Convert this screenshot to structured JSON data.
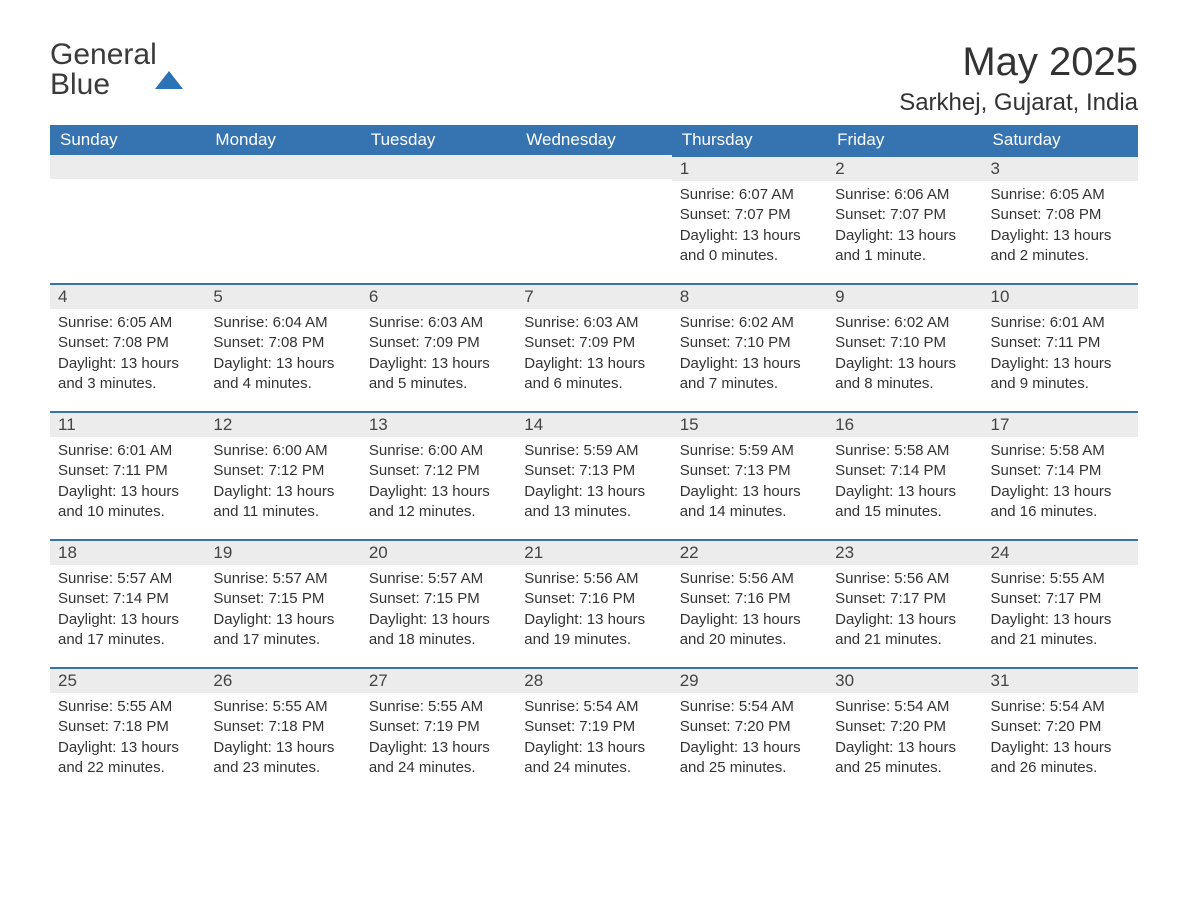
{
  "logo": {
    "line1": "General",
    "line2": "Blue"
  },
  "title": {
    "month": "May 2025",
    "location": "Sarkhej, Gujarat, India"
  },
  "colors": {
    "header_bg": "#3573b1",
    "header_text": "#ffffff",
    "daynum_bg": "#ececec",
    "border_top": "#3573b1",
    "body_text": "#333333"
  },
  "day_headers": [
    "Sunday",
    "Monday",
    "Tuesday",
    "Wednesday",
    "Thursday",
    "Friday",
    "Saturday"
  ],
  "weeks": [
    [
      {
        "empty": true
      },
      {
        "empty": true
      },
      {
        "empty": true
      },
      {
        "empty": true
      },
      {
        "num": "1",
        "sunrise": "Sunrise: 6:07 AM",
        "sunset": "Sunset: 7:07 PM",
        "daylight": "Daylight: 13 hours and 0 minutes."
      },
      {
        "num": "2",
        "sunrise": "Sunrise: 6:06 AM",
        "sunset": "Sunset: 7:07 PM",
        "daylight": "Daylight: 13 hours and 1 minute."
      },
      {
        "num": "3",
        "sunrise": "Sunrise: 6:05 AM",
        "sunset": "Sunset: 7:08 PM",
        "daylight": "Daylight: 13 hours and 2 minutes."
      }
    ],
    [
      {
        "num": "4",
        "sunrise": "Sunrise: 6:05 AM",
        "sunset": "Sunset: 7:08 PM",
        "daylight": "Daylight: 13 hours and 3 minutes."
      },
      {
        "num": "5",
        "sunrise": "Sunrise: 6:04 AM",
        "sunset": "Sunset: 7:08 PM",
        "daylight": "Daylight: 13 hours and 4 minutes."
      },
      {
        "num": "6",
        "sunrise": "Sunrise: 6:03 AM",
        "sunset": "Sunset: 7:09 PM",
        "daylight": "Daylight: 13 hours and 5 minutes."
      },
      {
        "num": "7",
        "sunrise": "Sunrise: 6:03 AM",
        "sunset": "Sunset: 7:09 PM",
        "daylight": "Daylight: 13 hours and 6 minutes."
      },
      {
        "num": "8",
        "sunrise": "Sunrise: 6:02 AM",
        "sunset": "Sunset: 7:10 PM",
        "daylight": "Daylight: 13 hours and 7 minutes."
      },
      {
        "num": "9",
        "sunrise": "Sunrise: 6:02 AM",
        "sunset": "Sunset: 7:10 PM",
        "daylight": "Daylight: 13 hours and 8 minutes."
      },
      {
        "num": "10",
        "sunrise": "Sunrise: 6:01 AM",
        "sunset": "Sunset: 7:11 PM",
        "daylight": "Daylight: 13 hours and 9 minutes."
      }
    ],
    [
      {
        "num": "11",
        "sunrise": "Sunrise: 6:01 AM",
        "sunset": "Sunset: 7:11 PM",
        "daylight": "Daylight: 13 hours and 10 minutes."
      },
      {
        "num": "12",
        "sunrise": "Sunrise: 6:00 AM",
        "sunset": "Sunset: 7:12 PM",
        "daylight": "Daylight: 13 hours and 11 minutes."
      },
      {
        "num": "13",
        "sunrise": "Sunrise: 6:00 AM",
        "sunset": "Sunset: 7:12 PM",
        "daylight": "Daylight: 13 hours and 12 minutes."
      },
      {
        "num": "14",
        "sunrise": "Sunrise: 5:59 AM",
        "sunset": "Sunset: 7:13 PM",
        "daylight": "Daylight: 13 hours and 13 minutes."
      },
      {
        "num": "15",
        "sunrise": "Sunrise: 5:59 AM",
        "sunset": "Sunset: 7:13 PM",
        "daylight": "Daylight: 13 hours and 14 minutes."
      },
      {
        "num": "16",
        "sunrise": "Sunrise: 5:58 AM",
        "sunset": "Sunset: 7:14 PM",
        "daylight": "Daylight: 13 hours and 15 minutes."
      },
      {
        "num": "17",
        "sunrise": "Sunrise: 5:58 AM",
        "sunset": "Sunset: 7:14 PM",
        "daylight": "Daylight: 13 hours and 16 minutes."
      }
    ],
    [
      {
        "num": "18",
        "sunrise": "Sunrise: 5:57 AM",
        "sunset": "Sunset: 7:14 PM",
        "daylight": "Daylight: 13 hours and 17 minutes."
      },
      {
        "num": "19",
        "sunrise": "Sunrise: 5:57 AM",
        "sunset": "Sunset: 7:15 PM",
        "daylight": "Daylight: 13 hours and 17 minutes."
      },
      {
        "num": "20",
        "sunrise": "Sunrise: 5:57 AM",
        "sunset": "Sunset: 7:15 PM",
        "daylight": "Daylight: 13 hours and 18 minutes."
      },
      {
        "num": "21",
        "sunrise": "Sunrise: 5:56 AM",
        "sunset": "Sunset: 7:16 PM",
        "daylight": "Daylight: 13 hours and 19 minutes."
      },
      {
        "num": "22",
        "sunrise": "Sunrise: 5:56 AM",
        "sunset": "Sunset: 7:16 PM",
        "daylight": "Daylight: 13 hours and 20 minutes."
      },
      {
        "num": "23",
        "sunrise": "Sunrise: 5:56 AM",
        "sunset": "Sunset: 7:17 PM",
        "daylight": "Daylight: 13 hours and 21 minutes."
      },
      {
        "num": "24",
        "sunrise": "Sunrise: 5:55 AM",
        "sunset": "Sunset: 7:17 PM",
        "daylight": "Daylight: 13 hours and 21 minutes."
      }
    ],
    [
      {
        "num": "25",
        "sunrise": "Sunrise: 5:55 AM",
        "sunset": "Sunset: 7:18 PM",
        "daylight": "Daylight: 13 hours and 22 minutes."
      },
      {
        "num": "26",
        "sunrise": "Sunrise: 5:55 AM",
        "sunset": "Sunset: 7:18 PM",
        "daylight": "Daylight: 13 hours and 23 minutes."
      },
      {
        "num": "27",
        "sunrise": "Sunrise: 5:55 AM",
        "sunset": "Sunset: 7:19 PM",
        "daylight": "Daylight: 13 hours and 24 minutes."
      },
      {
        "num": "28",
        "sunrise": "Sunrise: 5:54 AM",
        "sunset": "Sunset: 7:19 PM",
        "daylight": "Daylight: 13 hours and 24 minutes."
      },
      {
        "num": "29",
        "sunrise": "Sunrise: 5:54 AM",
        "sunset": "Sunset: 7:20 PM",
        "daylight": "Daylight: 13 hours and 25 minutes."
      },
      {
        "num": "30",
        "sunrise": "Sunrise: 5:54 AM",
        "sunset": "Sunset: 7:20 PM",
        "daylight": "Daylight: 13 hours and 25 minutes."
      },
      {
        "num": "31",
        "sunrise": "Sunrise: 5:54 AM",
        "sunset": "Sunset: 7:20 PM",
        "daylight": "Daylight: 13 hours and 26 minutes."
      }
    ]
  ]
}
